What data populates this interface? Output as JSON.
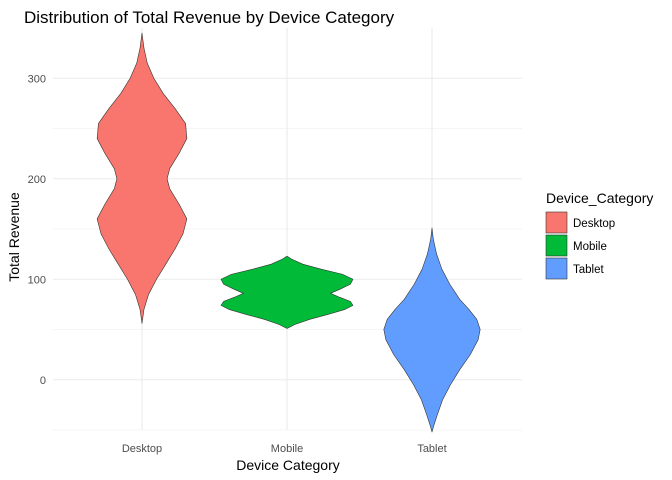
{
  "chart_data": {
    "type": "violin",
    "title": "Distribution of Total Revenue by Device Category",
    "xlabel": "Device Category",
    "ylabel": "Total Revenue",
    "categories": [
      "Desktop",
      "Mobile",
      "Tablet"
    ],
    "ylim": [
      -50,
      350
    ],
    "yticks": [
      0,
      100,
      200,
      300
    ],
    "grid": true,
    "legend": {
      "title": "Device_Category",
      "position": "right",
      "entries": [
        {
          "label": "Desktop",
          "color": "#F8766D"
        },
        {
          "label": "Mobile",
          "color": "#00BA38"
        },
        {
          "label": "Tablet",
          "color": "#619CFF"
        }
      ]
    },
    "series": [
      {
        "category": "Desktop",
        "color": "#F8766D",
        "density": [
          [
            56,
            0.0
          ],
          [
            70,
            0.03
          ],
          [
            85,
            0.1
          ],
          [
            100,
            0.22
          ],
          [
            115,
            0.36
          ],
          [
            130,
            0.5
          ],
          [
            145,
            0.62
          ],
          [
            160,
            0.68
          ],
          [
            175,
            0.56
          ],
          [
            190,
            0.42
          ],
          [
            200,
            0.38
          ],
          [
            210,
            0.42
          ],
          [
            225,
            0.56
          ],
          [
            240,
            0.68
          ],
          [
            255,
            0.66
          ],
          [
            270,
            0.5
          ],
          [
            285,
            0.32
          ],
          [
            300,
            0.18
          ],
          [
            315,
            0.08
          ],
          [
            330,
            0.03
          ],
          [
            345,
            0.0
          ]
        ]
      },
      {
        "category": "Mobile",
        "color": "#00BA38",
        "density": [
          [
            51,
            0.0
          ],
          [
            55,
            0.12
          ],
          [
            60,
            0.34
          ],
          [
            65,
            0.62
          ],
          [
            70,
            0.88
          ],
          [
            74,
            1.0
          ],
          [
            78,
            0.96
          ],
          [
            82,
            0.8
          ],
          [
            86,
            0.66
          ],
          [
            90,
            0.8
          ],
          [
            95,
            0.96
          ],
          [
            100,
            1.0
          ],
          [
            105,
            0.84
          ],
          [
            110,
            0.52
          ],
          [
            115,
            0.24
          ],
          [
            120,
            0.07
          ],
          [
            123,
            0.0
          ]
        ]
      },
      {
        "category": "Tablet",
        "color": "#619CFF",
        "density": [
          [
            -52,
            0.0
          ],
          [
            -45,
            0.03
          ],
          [
            -35,
            0.08
          ],
          [
            -20,
            0.16
          ],
          [
            -5,
            0.28
          ],
          [
            10,
            0.42
          ],
          [
            25,
            0.58
          ],
          [
            40,
            0.7
          ],
          [
            50,
            0.73
          ],
          [
            60,
            0.68
          ],
          [
            70,
            0.56
          ],
          [
            80,
            0.42
          ],
          [
            95,
            0.27
          ],
          [
            110,
            0.15
          ],
          [
            125,
            0.07
          ],
          [
            140,
            0.02
          ],
          [
            151,
            0.0
          ]
        ]
      }
    ]
  }
}
